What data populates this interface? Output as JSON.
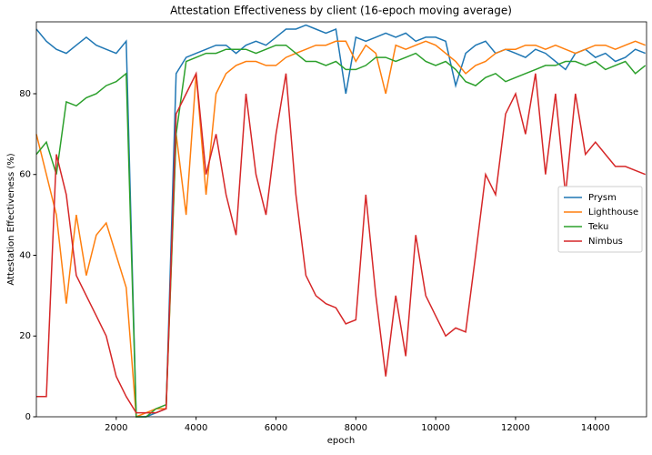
{
  "chart_data": {
    "type": "line",
    "title": "Attestation Effectiveness by client (16-epoch moving average)",
    "xlabel": "epoch",
    "ylabel": "Attestation Effectiveness (%)",
    "x": [
      0,
      250,
      500,
      750,
      1000,
      1250,
      1500,
      1750,
      2000,
      2250,
      2500,
      2750,
      3000,
      3250,
      3500,
      3750,
      4000,
      4250,
      4500,
      4750,
      5000,
      5250,
      5500,
      5750,
      6000,
      6250,
      6500,
      6750,
      7000,
      7250,
      7500,
      7750,
      8000,
      8250,
      8500,
      8750,
      9000,
      9250,
      9500,
      9750,
      10000,
      10250,
      10500,
      10750,
      11000,
      11250,
      11500,
      11750,
      12000,
      12250,
      12500,
      12750,
      13000,
      13250,
      13500,
      13750,
      14000,
      14250,
      14500,
      14750,
      15000,
      15250
    ],
    "series": [
      {
        "name": "Prysm",
        "color": "#1f77b4",
        "values": [
          96,
          93,
          91,
          90,
          92,
          94,
          92,
          91,
          90,
          93,
          0,
          0,
          1,
          2,
          85,
          89,
          90,
          91,
          92,
          92,
          90,
          92,
          93,
          92,
          94,
          96,
          96,
          97,
          96,
          95,
          96,
          80,
          94,
          93,
          94,
          95,
          94,
          95,
          93,
          94,
          94,
          93,
          82,
          90,
          92,
          93,
          90,
          91,
          90,
          89,
          91,
          90,
          88,
          86,
          90,
          91,
          89,
          90,
          88,
          89,
          91,
          90
        ]
      },
      {
        "name": "Lighthouse",
        "color": "#ff7f0e",
        "values": [
          70,
          60,
          50,
          28,
          50,
          35,
          45,
          48,
          40,
          32,
          0,
          1,
          2,
          2,
          70,
          50,
          85,
          55,
          80,
          85,
          87,
          88,
          88,
          87,
          87,
          89,
          90,
          91,
          92,
          92,
          93,
          93,
          88,
          92,
          90,
          80,
          92,
          91,
          92,
          93,
          92,
          90,
          88,
          85,
          87,
          88,
          90,
          91,
          91,
          92,
          92,
          91,
          92,
          91,
          90,
          91,
          92,
          92,
          91,
          92,
          93,
          92
        ]
      },
      {
        "name": "Teku",
        "color": "#2ca02c",
        "values": [
          65,
          68,
          60,
          78,
          77,
          79,
          80,
          82,
          83,
          85,
          0,
          0,
          2,
          3,
          70,
          88,
          89,
          90,
          90,
          91,
          91,
          91,
          90,
          91,
          92,
          92,
          90,
          88,
          88,
          87,
          88,
          86,
          86,
          87,
          89,
          89,
          88,
          89,
          90,
          88,
          87,
          88,
          86,
          83,
          82,
          84,
          85,
          83,
          84,
          85,
          86,
          87,
          87,
          88,
          88,
          87,
          88,
          86,
          87,
          88,
          85,
          87
        ]
      },
      {
        "name": "Nimbus",
        "color": "#d62728",
        "values": [
          5,
          5,
          65,
          55,
          35,
          30,
          25,
          20,
          10,
          5,
          1,
          1,
          1,
          2,
          75,
          80,
          85,
          60,
          70,
          55,
          45,
          80,
          60,
          50,
          70,
          85,
          55,
          35,
          30,
          28,
          27,
          23,
          24,
          55,
          30,
          10,
          30,
          15,
          45,
          30,
          25,
          20,
          22,
          21,
          40,
          60,
          55,
          75,
          80,
          70,
          85,
          60,
          80,
          55,
          80,
          65,
          68,
          65,
          62,
          62,
          61,
          60
        ]
      }
    ],
    "xlim": [
      0,
      15280
    ],
    "ylim": [
      0,
      97.8
    ],
    "xticks": [
      2000,
      4000,
      6000,
      8000,
      10000,
      12000,
      14000
    ],
    "yticks": [
      0,
      20,
      40,
      60,
      80
    ],
    "legend": "center right"
  }
}
